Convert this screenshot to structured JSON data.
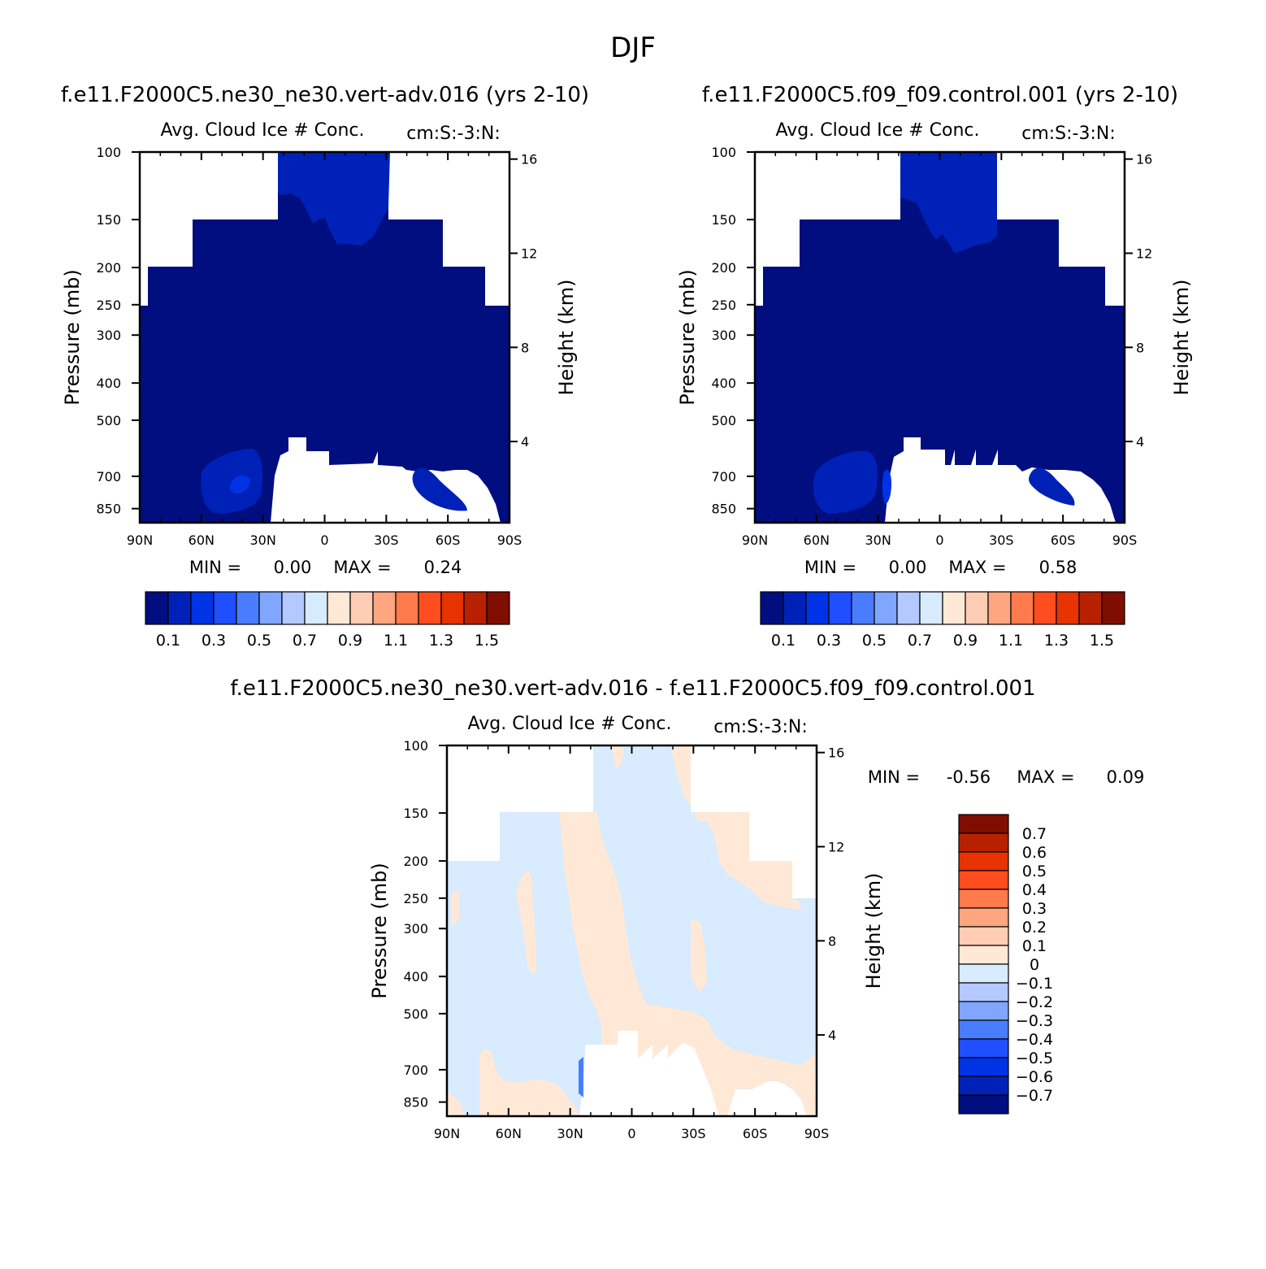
{
  "figure": {
    "title": "DJF"
  },
  "palette": {
    "levels_colors": [
      "#000e80",
      "#0021b8",
      "#0033e6",
      "#1f4fff",
      "#4a7cff",
      "#80a6ff",
      "#b3c9ff",
      "#d8ebff",
      "#ffe8d6",
      "#ffcdb3",
      "#ffa580",
      "#ff7a4d",
      "#ff4d1f",
      "#e63300",
      "#b82100",
      "#800e00"
    ],
    "region_colors": {
      "dark": "#000e80",
      "blue": "#0021b8",
      "brightblue": "#0033e6",
      "lightblue": "#d8ebff",
      "peach": "#ffe8d6"
    }
  },
  "panels": [
    {
      "id": "top-left",
      "case_title": "f.e11.F2000C5.ne30_ne30.vert-adv.016 (yrs 2-10)",
      "variable_label": "Avg. Cloud Ice # Conc.",
      "units_label": "cm:S:-3:N:",
      "min_label": "MIN =",
      "min_value": "0.00",
      "max_label": "MAX =",
      "max_value": "0.24"
    },
    {
      "id": "top-right",
      "case_title": "f.e11.F2000C5.f09_f09.control.001 (yrs 2-10)",
      "variable_label": "Avg. Cloud Ice # Conc.",
      "units_label": "cm:S:-3:N:",
      "min_label": "MIN =",
      "min_value": "0.00",
      "max_label": "MAX =",
      "max_value": "0.58"
    },
    {
      "id": "bottom",
      "case_title": "f.e11.F2000C5.ne30_ne30.vert-adv.016 - f.e11.F2000C5.f09_f09.control.001",
      "variable_label": "Avg. Cloud Ice # Conc.",
      "units_label": "cm:S:-3:N:",
      "min_label": "MIN =",
      "min_value": "-0.56",
      "max_label": "MAX =",
      "max_value": "0.09"
    }
  ],
  "chart_data": [
    {
      "type": "heatmap",
      "panel": "top-left",
      "title": "Avg. Cloud Ice # Conc.",
      "ylabel": "Pressure (mb)",
      "y2label": "Height (km)",
      "x_ticks": [
        "90N",
        "60N",
        "30N",
        "0",
        "30S",
        "60S",
        "90S"
      ],
      "y_ticks": [
        100,
        150,
        200,
        250,
        300,
        400,
        500,
        700,
        850
      ],
      "y2_ticks": [
        16,
        12,
        8,
        4
      ],
      "colorbar": {
        "orientation": "horizontal",
        "labels": [
          "0.1",
          "0.3",
          "0.5",
          "0.7",
          "0.9",
          "1.1",
          "1.3",
          "1.5"
        ],
        "levels": [
          0.1,
          0.2,
          0.3,
          0.4,
          0.5,
          0.6,
          0.7,
          0.8,
          0.9,
          1.0,
          1.1,
          1.2,
          1.3,
          1.4,
          1.5
        ]
      },
      "min": 0.0,
      "max": 0.24
    },
    {
      "type": "heatmap",
      "panel": "top-right",
      "title": "Avg. Cloud Ice # Conc.",
      "ylabel": "Pressure (mb)",
      "y2label": "Height (km)",
      "x_ticks": [
        "90N",
        "60N",
        "30N",
        "0",
        "30S",
        "60S",
        "90S"
      ],
      "y_ticks": [
        100,
        150,
        200,
        250,
        300,
        400,
        500,
        700,
        850
      ],
      "y2_ticks": [
        16,
        12,
        8,
        4
      ],
      "colorbar": {
        "orientation": "horizontal",
        "labels": [
          "0.1",
          "0.3",
          "0.5",
          "0.7",
          "0.9",
          "1.1",
          "1.3",
          "1.5"
        ],
        "levels": [
          0.1,
          0.2,
          0.3,
          0.4,
          0.5,
          0.6,
          0.7,
          0.8,
          0.9,
          1.0,
          1.1,
          1.2,
          1.3,
          1.4,
          1.5
        ]
      },
      "min": 0.0,
      "max": 0.58
    },
    {
      "type": "heatmap",
      "panel": "bottom",
      "title": "Avg. Cloud Ice # Conc.",
      "ylabel": "Pressure (mb)",
      "y2label": "Height (km)",
      "x_ticks": [
        "90N",
        "60N",
        "30N",
        "0",
        "30S",
        "60S",
        "90S"
      ],
      "y_ticks": [
        100,
        150,
        200,
        250,
        300,
        400,
        500,
        700,
        850
      ],
      "y2_ticks": [
        16,
        12,
        8,
        4
      ],
      "colorbar": {
        "orientation": "vertical",
        "labels": [
          "0.7",
          "0.6",
          "0.5",
          "0.4",
          "0.3",
          "0.2",
          "0.1",
          "0",
          "-0.1",
          "-0.2",
          "-0.3",
          "-0.4",
          "-0.5",
          "-0.6",
          "-0.7"
        ],
        "levels": [
          0.7,
          0.6,
          0.5,
          0.4,
          0.3,
          0.2,
          0.1,
          0,
          -0.1,
          -0.2,
          -0.3,
          -0.4,
          -0.5,
          -0.6,
          -0.7
        ]
      },
      "min": -0.56,
      "max": 0.09
    }
  ]
}
